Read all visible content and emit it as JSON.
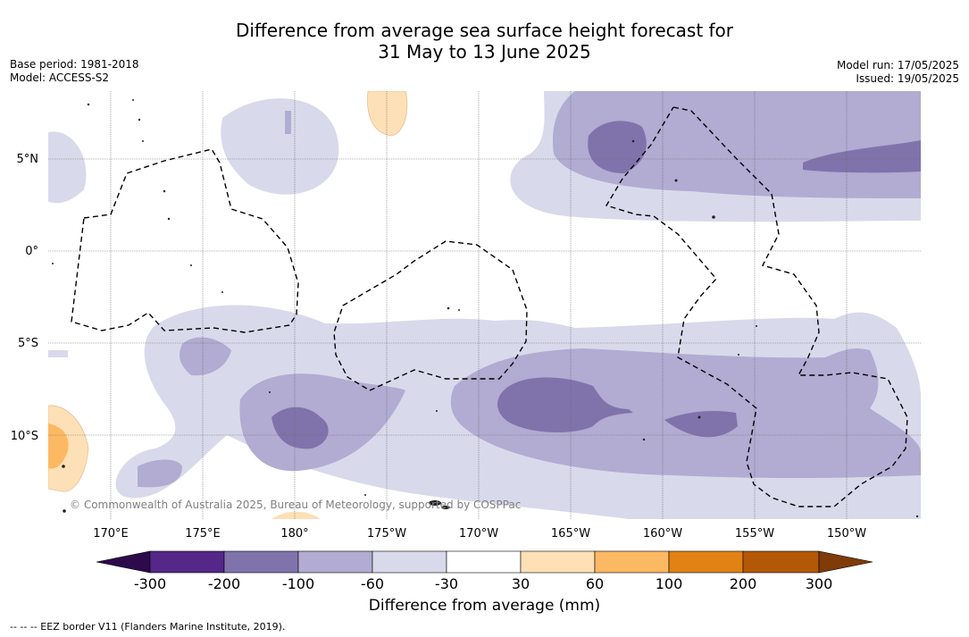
{
  "header": {
    "title_line1": "Difference from average sea surface height forecast for",
    "title_line2": "31 May to 13 June 2025",
    "base_period": "Base period: 1981-2018",
    "model": "Model: ACCESS-S2",
    "model_run": "Model run: 17/05/2025",
    "issued": "Issued: 19/05/2025"
  },
  "map": {
    "lat_labels": [
      "5°N",
      "0°",
      "5°S",
      "10°S"
    ],
    "lon_labels": [
      "170°E",
      "175°E",
      "180°",
      "175°W",
      "170°W",
      "165°W",
      "160°W",
      "155°W",
      "150°W"
    ],
    "credit": "© Commonwealth of Australia 2025, Bureau of Meteorology, supported by COSPPac"
  },
  "legend": {
    "ticks": [
      "-300",
      "-200",
      "-100",
      "-60",
      "-30",
      "30",
      "60",
      "100",
      "200",
      "300"
    ],
    "colors": [
      "#2d0a4b",
      "#542788",
      "#8073ac",
      "#b2abd2",
      "#d8daeb",
      "#ffffff",
      "#fee0b6",
      "#fdb863",
      "#e08214",
      "#b35806",
      "#7f3b08"
    ],
    "label": "Difference from average (mm)"
  },
  "footnote": "--  --  -- EEZ border V11 (Flanders Marine Institute, 2019)."
}
